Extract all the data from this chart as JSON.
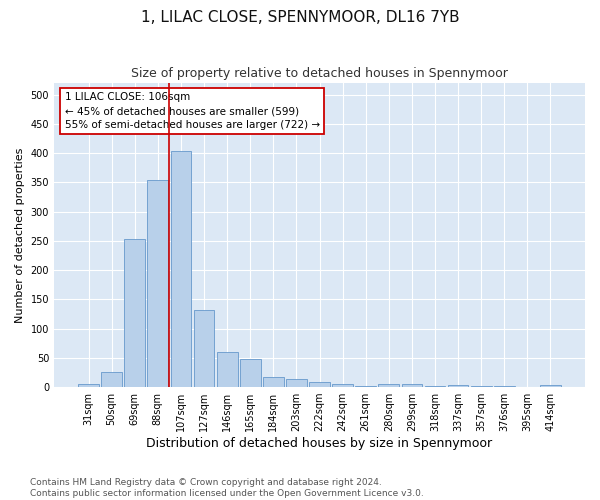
{
  "title": "1, LILAC CLOSE, SPENNYMOOR, DL16 7YB",
  "subtitle": "Size of property relative to detached houses in Spennymoor",
  "xlabel": "Distribution of detached houses by size in Spennymoor",
  "ylabel": "Number of detached properties",
  "categories": [
    "31sqm",
    "50sqm",
    "69sqm",
    "88sqm",
    "107sqm",
    "127sqm",
    "146sqm",
    "165sqm",
    "184sqm",
    "203sqm",
    "222sqm",
    "242sqm",
    "261sqm",
    "280sqm",
    "299sqm",
    "318sqm",
    "337sqm",
    "357sqm",
    "376sqm",
    "395sqm",
    "414sqm"
  ],
  "values": [
    5,
    25,
    253,
    355,
    403,
    132,
    60,
    48,
    18,
    14,
    8,
    5,
    1,
    5,
    5,
    1,
    4,
    1,
    1,
    0,
    3
  ],
  "bar_color": "#b8d0ea",
  "bar_edge_color": "#6699cc",
  "vline_color": "#cc0000",
  "annotation_text": "1 LILAC CLOSE: 106sqm\n← 45% of detached houses are smaller (599)\n55% of semi-detached houses are larger (722) →",
  "annotation_box_color": "#ffffff",
  "annotation_box_edge": "#cc0000",
  "ylim": [
    0,
    520
  ],
  "yticks": [
    0,
    50,
    100,
    150,
    200,
    250,
    300,
    350,
    400,
    450,
    500
  ],
  "plot_bg_color": "#dce8f5",
  "title_fontsize": 11,
  "subtitle_fontsize": 9,
  "axis_label_fontsize": 8,
  "tick_fontsize": 7,
  "footer_fontsize": 6.5,
  "footer": "Contains HM Land Registry data © Crown copyright and database right 2024.\nContains public sector information licensed under the Open Government Licence v3.0."
}
